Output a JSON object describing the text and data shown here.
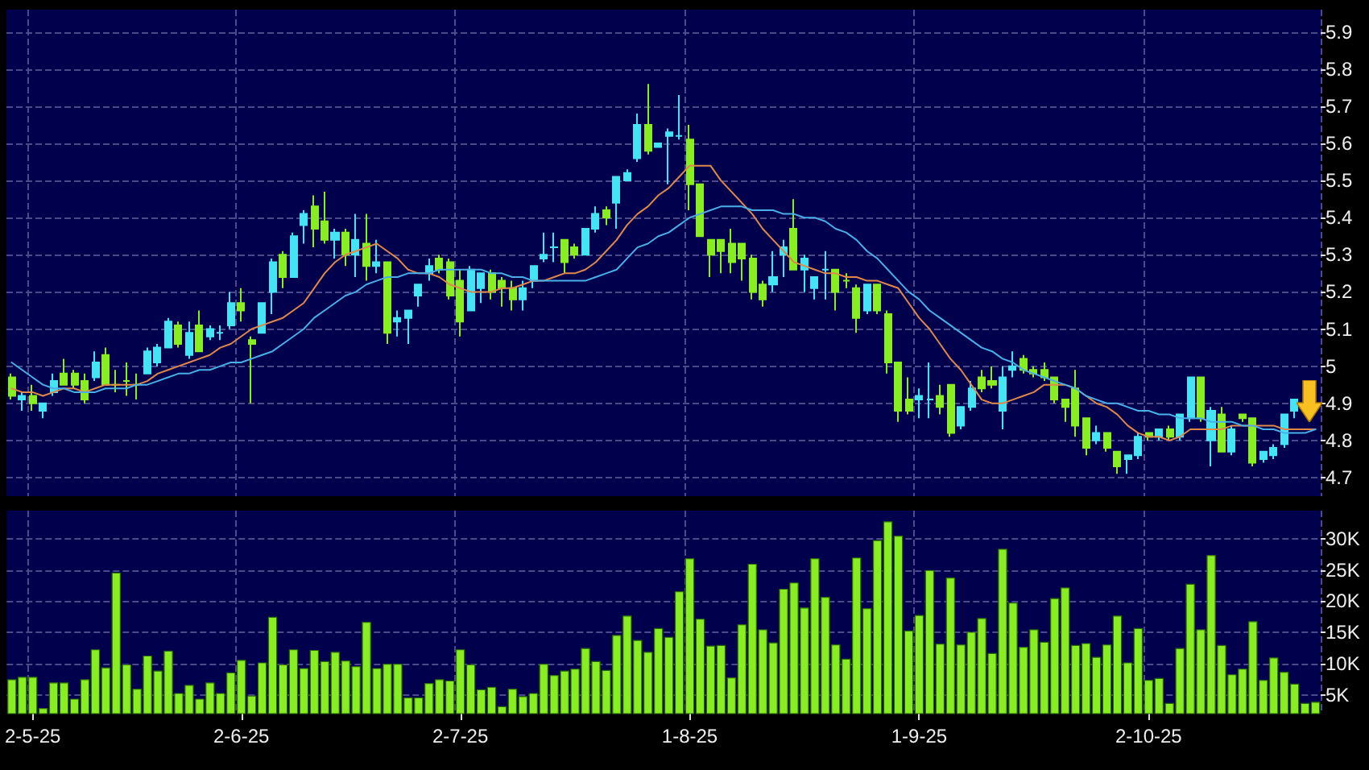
{
  "chart_data": [
    {
      "type": "candlestick",
      "tick_labels": "y",
      "grid": true,
      "marker": "none",
      "line_style": "solid",
      "categories": [
        null,
        null,
        null,
        null,
        null,
        null,
        null,
        null,
        null,
        null,
        null,
        null,
        null,
        null,
        null,
        null,
        null,
        null,
        null,
        null,
        null,
        null,
        null,
        null,
        null,
        null,
        null,
        null,
        null,
        null,
        null,
        null,
        null,
        null,
        null,
        null,
        null,
        null,
        null,
        null,
        null,
        null,
        null,
        null,
        null,
        null,
        null,
        null,
        null,
        null,
        null,
        null,
        null,
        null,
        null,
        null,
        null,
        null,
        null,
        null,
        null,
        null,
        null,
        null,
        null,
        null,
        null,
        null,
        null,
        null,
        null,
        null,
        null,
        null,
        null,
        null,
        null,
        null,
        null,
        null,
        null,
        null,
        null,
        null,
        null,
        null,
        null,
        null,
        null,
        null,
        null,
        null,
        null,
        null,
        null,
        null,
        null,
        null,
        null,
        null,
        null,
        null,
        null,
        null,
        null,
        null,
        null,
        null,
        null,
        null,
        null,
        null,
        null,
        null,
        null,
        null,
        null,
        null,
        null,
        null,
        null,
        null,
        null,
        null,
        null,
        null
      ],
      "ylim": [
        4.65,
        5.96
      ],
      "yticks": [
        4.7,
        4.8,
        4.9,
        5,
        5.1,
        5.2,
        5.3,
        5.4,
        5.5,
        5.6,
        5.7,
        5.8,
        5.9
      ],
      "series": [
        {
          "type": "candlestick",
          "ohlc": [
            [
              4.97,
              4.98,
              4.91,
              4.92
            ],
            [
              4.91,
              4.93,
              4.88,
              4.92
            ],
            [
              4.92,
              4.95,
              4.88,
              4.9
            ],
            [
              4.88,
              4.9,
              4.86,
              4.9
            ],
            [
              4.93,
              4.98,
              4.92,
              4.96
            ],
            [
              4.98,
              5.02,
              4.95,
              4.95
            ],
            [
              4.98,
              4.99,
              4.94,
              4.95
            ],
            [
              4.96,
              4.98,
              4.9,
              4.91
            ],
            [
              4.97,
              5.04,
              4.96,
              5.01
            ],
            [
              5.03,
              5.05,
              4.95,
              4.95
            ],
            [
              4.95,
              4.99,
              4.93,
              4.95
            ],
            [
              4.96,
              5.01,
              4.92,
              4.96
            ],
            [
              4.95,
              4.98,
              4.91,
              4.95
            ],
            [
              4.98,
              5.05,
              4.98,
              5.04
            ],
            [
              5.01,
              5.06,
              5.0,
              5.05
            ],
            [
              5.05,
              5.13,
              5.05,
              5.12
            ],
            [
              5.11,
              5.12,
              5.05,
              5.06
            ],
            [
              5.03,
              5.12,
              5.02,
              5.09
            ],
            [
              5.11,
              5.15,
              5.04,
              5.04
            ],
            [
              5.08,
              5.11,
              5.07,
              5.1
            ],
            [
              5.09,
              5.11,
              5.07,
              5.09
            ],
            [
              5.11,
              5.2,
              5.1,
              5.17
            ],
            [
              5.17,
              5.21,
              5.12,
              5.15
            ],
            [
              5.07,
              5.08,
              4.9,
              5.06
            ],
            [
              5.09,
              5.17,
              5.09,
              5.17
            ],
            [
              5.2,
              5.29,
              5.14,
              5.28
            ],
            [
              5.3,
              5.31,
              5.21,
              5.24
            ],
            [
              5.24,
              5.36,
              5.24,
              5.35
            ],
            [
              5.38,
              5.42,
              5.33,
              5.41
            ],
            [
              5.43,
              5.46,
              5.32,
              5.37
            ],
            [
              5.39,
              5.47,
              5.33,
              5.34
            ],
            [
              5.34,
              5.37,
              5.29,
              5.36
            ],
            [
              5.36,
              5.37,
              5.27,
              5.3
            ],
            [
              5.3,
              5.41,
              5.24,
              5.34
            ],
            [
              5.33,
              5.41,
              5.23,
              5.27
            ],
            [
              5.27,
              5.34,
              5.25,
              5.28
            ],
            [
              5.28,
              5.28,
              5.06,
              5.09
            ],
            [
              5.12,
              5.15,
              5.08,
              5.13
            ],
            [
              5.13,
              5.15,
              5.06,
              5.15
            ],
            [
              5.19,
              5.22,
              5.16,
              5.22
            ],
            [
              5.25,
              5.29,
              5.23,
              5.27
            ],
            [
              5.29,
              5.3,
              5.25,
              5.26
            ],
            [
              5.28,
              5.29,
              5.18,
              5.19
            ],
            [
              5.23,
              5.26,
              5.08,
              5.12
            ],
            [
              5.15,
              5.27,
              5.15,
              5.26
            ],
            [
              5.21,
              5.25,
              5.17,
              5.25
            ],
            [
              5.25,
              5.26,
              5.18,
              5.2
            ],
            [
              5.23,
              5.24,
              5.16,
              5.21
            ],
            [
              5.21,
              5.23,
              5.15,
              5.18
            ],
            [
              5.18,
              5.23,
              5.15,
              5.21
            ],
            [
              5.23,
              5.27,
              5.21,
              5.27
            ],
            [
              5.29,
              5.36,
              5.28,
              5.3
            ],
            [
              5.32,
              5.36,
              5.28,
              5.32
            ],
            [
              5.34,
              5.34,
              5.25,
              5.28
            ],
            [
              5.32,
              5.33,
              5.29,
              5.3
            ],
            [
              5.3,
              5.37,
              5.3,
              5.37
            ],
            [
              5.37,
              5.43,
              5.36,
              5.41
            ],
            [
              5.42,
              5.43,
              5.38,
              5.4
            ],
            [
              5.44,
              5.51,
              5.37,
              5.51
            ],
            [
              5.5,
              5.53,
              5.5,
              5.52
            ],
            [
              5.56,
              5.68,
              5.55,
              5.65
            ],
            [
              5.65,
              5.76,
              5.57,
              5.58
            ],
            [
              5.59,
              5.6,
              5.59,
              5.6
            ],
            [
              5.62,
              5.64,
              5.49,
              5.63
            ],
            [
              5.62,
              5.73,
              5.61,
              5.62
            ],
            [
              5.61,
              5.65,
              5.42,
              5.49
            ],
            [
              5.49,
              5.49,
              5.35,
              5.35
            ],
            [
              5.34,
              5.34,
              5.24,
              5.3
            ],
            [
              5.34,
              5.34,
              5.25,
              5.31
            ],
            [
              5.33,
              5.37,
              5.25,
              5.28
            ],
            [
              5.33,
              5.33,
              5.23,
              5.29
            ],
            [
              5.29,
              5.3,
              5.18,
              5.2
            ],
            [
              5.22,
              5.23,
              5.16,
              5.18
            ],
            [
              5.22,
              5.31,
              5.2,
              5.24
            ],
            [
              5.3,
              5.34,
              5.24,
              5.32
            ],
            [
              5.37,
              5.45,
              5.26,
              5.26
            ],
            [
              5.26,
              5.3,
              5.2,
              5.29
            ],
            [
              5.21,
              5.24,
              5.18,
              5.24
            ],
            [
              5.26,
              5.31,
              5.18,
              5.26
            ],
            [
              5.26,
              5.26,
              5.15,
              5.2
            ],
            [
              5.23,
              5.25,
              5.21,
              5.23
            ],
            [
              5.21,
              5.22,
              5.09,
              5.13
            ],
            [
              5.15,
              5.22,
              5.14,
              5.22
            ],
            [
              5.22,
              5.22,
              5.14,
              5.15
            ],
            [
              5.14,
              5.15,
              4.98,
              5.01
            ],
            [
              5.01,
              5.01,
              4.85,
              4.88
            ],
            [
              4.91,
              4.97,
              4.87,
              4.88
            ],
            [
              4.91,
              4.94,
              4.86,
              4.92
            ],
            [
              4.91,
              5.01,
              4.86,
              4.91
            ],
            [
              4.92,
              4.95,
              4.87,
              4.89
            ],
            [
              4.95,
              4.95,
              4.81,
              4.82
            ],
            [
              4.84,
              4.89,
              4.83,
              4.89
            ],
            [
              4.89,
              4.96,
              4.88,
              4.94
            ],
            [
              4.97,
              4.99,
              4.93,
              4.94
            ],
            [
              4.96,
              5.0,
              4.94,
              4.95
            ],
            [
              4.88,
              5.0,
              4.83,
              4.97
            ],
            [
              4.99,
              5.04,
              4.97,
              5.0
            ],
            [
              5.02,
              5.03,
              4.98,
              4.99
            ],
            [
              4.99,
              5.0,
              4.97,
              4.98
            ],
            [
              4.99,
              5.01,
              4.96,
              4.97
            ],
            [
              4.97,
              4.97,
              4.9,
              4.91
            ],
            [
              4.91,
              4.91,
              4.85,
              4.89
            ],
            [
              4.94,
              4.99,
              4.81,
              4.84
            ],
            [
              4.86,
              4.86,
              4.76,
              4.78
            ],
            [
              4.8,
              4.84,
              4.79,
              4.82
            ],
            [
              4.82,
              4.82,
              4.77,
              4.78
            ],
            [
              4.77,
              4.77,
              4.71,
              4.73
            ],
            [
              4.75,
              4.76,
              4.71,
              4.76
            ],
            [
              4.76,
              4.82,
              4.75,
              4.81
            ],
            [
              4.82,
              4.82,
              4.8,
              4.81
            ],
            [
              4.81,
              4.83,
              4.8,
              4.83
            ],
            [
              4.83,
              4.84,
              4.8,
              4.81
            ],
            [
              4.81,
              4.87,
              4.8,
              4.87
            ],
            [
              4.86,
              4.97,
              4.85,
              4.97
            ],
            [
              4.97,
              4.97,
              4.85,
              4.86
            ],
            [
              4.8,
              4.89,
              4.73,
              4.88
            ],
            [
              4.87,
              4.89,
              4.77,
              4.77
            ],
            [
              4.77,
              4.84,
              4.76,
              4.83
            ],
            [
              4.87,
              4.87,
              4.85,
              4.86
            ],
            [
              4.86,
              4.86,
              4.73,
              4.74
            ],
            [
              4.75,
              4.77,
              4.74,
              4.77
            ],
            [
              4.76,
              4.79,
              4.75,
              4.78
            ],
            [
              4.79,
              4.87,
              4.78,
              4.87
            ],
            [
              4.88,
              4.91,
              4.86,
              4.91
            ],
            null,
            null
          ],
          "colors": [
            "#88ee22",
            "#44e4f4",
            "#88ee22",
            "#44e4f4",
            "#44e4f4",
            "#88ee22",
            "#88ee22",
            "#88ee22",
            "#44e4f4",
            "#88ee22",
            "#88ee22",
            "#88ee22",
            "#88ee22",
            "#44e4f4",
            "#44e4f4",
            "#44e4f4",
            "#88ee22",
            "#44e4f4",
            "#88ee22",
            "#44e4f4",
            "#44e4f4",
            "#44e4f4",
            "#88ee22",
            "#88ee22",
            "#44e4f4",
            "#44e4f4",
            "#88ee22",
            "#44e4f4",
            "#44e4f4",
            "#88ee22",
            "#88ee22",
            "#44e4f4",
            "#88ee22",
            "#44e4f4",
            "#88ee22",
            "#44e4f4",
            "#88ee22",
            "#44e4f4",
            "#44e4f4",
            "#44e4f4",
            "#44e4f4",
            "#88ee22",
            "#88ee22",
            "#88ee22",
            "#44e4f4",
            "#44e4f4",
            "#88ee22",
            "#88ee22",
            "#88ee22",
            "#44e4f4",
            "#44e4f4",
            "#44e4f4",
            "#44e4f4",
            "#88ee22",
            "#88ee22",
            "#44e4f4",
            "#44e4f4",
            "#88ee22",
            "#44e4f4",
            "#44e4f4",
            "#44e4f4",
            "#88ee22",
            "#44e4f4",
            "#44e4f4",
            "#44e4f4",
            "#88ee22",
            "#88ee22",
            "#88ee22",
            "#88ee22",
            "#88ee22",
            "#88ee22",
            "#88ee22",
            "#88ee22",
            "#44e4f4",
            "#44e4f4",
            "#88ee22",
            "#44e4f4",
            "#44e4f4",
            "#44e4f4",
            "#88ee22",
            "#88ee22",
            "#88ee22",
            "#44e4f4",
            "#88ee22",
            "#88ee22",
            "#88ee22",
            "#88ee22",
            "#44e4f4",
            "#44e4f4",
            "#88ee22",
            "#88ee22",
            "#44e4f4",
            "#44e4f4",
            "#88ee22",
            "#88ee22",
            "#44e4f4",
            "#44e4f4",
            "#88ee22",
            "#88ee22",
            "#88ee22",
            "#88ee22",
            "#88ee22",
            "#88ee22",
            "#88ee22",
            "#44e4f4",
            "#88ee22",
            "#88ee22",
            "#44e4f4",
            "#44e4f4",
            "#88ee22",
            "#44e4f4",
            "#88ee22",
            "#44e4f4",
            "#44e4f4",
            "#88ee22",
            "#44e4f4",
            "#88ee22",
            "#44e4f4",
            "#88ee22",
            "#88ee22",
            "#44e4f4",
            "#44e4f4",
            "#44e4f4",
            "#44e4f4",
            null,
            null
          ]
        },
        {
          "type": "line",
          "color": "#e0884a",
          "values": [
            4.94,
            4.93,
            4.93,
            4.92,
            4.93,
            4.94,
            4.94,
            4.93,
            4.94,
            4.95,
            4.95,
            4.95,
            4.95,
            4.96,
            4.98,
            4.99,
            5.0,
            5.01,
            5.02,
            5.03,
            5.05,
            5.06,
            5.08,
            5.1,
            5.11,
            5.12,
            5.13,
            5.15,
            5.17,
            5.21,
            5.25,
            5.28,
            5.3,
            5.31,
            5.32,
            5.33,
            5.31,
            5.29,
            5.26,
            5.25,
            5.25,
            5.24,
            5.22,
            5.21,
            5.2,
            5.2,
            5.2,
            5.21,
            5.21,
            5.22,
            5.23,
            5.23,
            5.24,
            5.25,
            5.25,
            5.26,
            5.28,
            5.31,
            5.34,
            5.38,
            5.41,
            5.43,
            5.46,
            5.48,
            5.51,
            5.54,
            5.54,
            5.54,
            5.5,
            5.47,
            5.44,
            5.41,
            5.37,
            5.34,
            5.31,
            5.28,
            5.27,
            5.26,
            5.25,
            5.25,
            5.24,
            5.24,
            5.23,
            5.23,
            5.22,
            5.21,
            5.17,
            5.13,
            5.1,
            5.06,
            5.02,
            4.99,
            4.95,
            4.91,
            4.9,
            4.9,
            4.91,
            4.92,
            4.93,
            4.95,
            4.95,
            4.95,
            4.94,
            4.92,
            4.9,
            4.89,
            4.87,
            4.84,
            4.82,
            4.81,
            4.81,
            4.8,
            4.81,
            4.83,
            4.83,
            4.83,
            4.83,
            4.84,
            4.84,
            4.84,
            4.84,
            4.84,
            4.83,
            4.83,
            4.83,
            4.83
          ]
        },
        {
          "type": "line",
          "color": "#4aaee8",
          "values": [
            5.01,
            4.99,
            4.97,
            4.95,
            4.94,
            4.94,
            4.93,
            4.93,
            4.93,
            4.94,
            4.94,
            4.94,
            4.95,
            4.95,
            4.96,
            4.97,
            4.98,
            4.98,
            4.99,
            4.99,
            5.0,
            5.01,
            5.01,
            5.02,
            5.03,
            5.04,
            5.06,
            5.08,
            5.1,
            5.13,
            5.15,
            5.17,
            5.19,
            5.2,
            5.22,
            5.23,
            5.24,
            5.24,
            5.25,
            5.25,
            5.25,
            5.26,
            5.26,
            5.26,
            5.26,
            5.26,
            5.25,
            5.25,
            5.24,
            5.24,
            5.23,
            5.23,
            5.23,
            5.23,
            5.23,
            5.23,
            5.24,
            5.25,
            5.26,
            5.29,
            5.32,
            5.33,
            5.35,
            5.36,
            5.38,
            5.4,
            5.41,
            5.42,
            5.43,
            5.43,
            5.43,
            5.42,
            5.42,
            5.42,
            5.41,
            5.41,
            5.4,
            5.4,
            5.39,
            5.37,
            5.36,
            5.34,
            5.31,
            5.29,
            5.26,
            5.23,
            5.2,
            5.18,
            5.15,
            5.13,
            5.11,
            5.09,
            5.07,
            5.05,
            5.04,
            5.02,
            5.01,
            4.99,
            4.98,
            4.97,
            4.96,
            4.95,
            4.94,
            4.92,
            4.91,
            4.9,
            4.9,
            4.89,
            4.88,
            4.88,
            4.87,
            4.87,
            4.86,
            4.86,
            4.86,
            4.85,
            4.85,
            4.85,
            4.84,
            4.84,
            4.83,
            4.83,
            4.82,
            4.82,
            4.82,
            4.83
          ]
        }
      ]
    },
    {
      "type": "bar",
      "grid": true,
      "color": "#88ee22",
      "categories": [
        null,
        null,
        "2-5-25",
        null,
        null,
        null,
        null,
        null,
        null,
        null,
        null,
        null,
        null,
        null,
        null,
        null,
        null,
        null,
        null,
        null,
        null,
        null,
        "2-6-25",
        null,
        null,
        null,
        null,
        null,
        null,
        null,
        null,
        null,
        null,
        null,
        null,
        null,
        null,
        null,
        null,
        null,
        null,
        null,
        null,
        "2-7-25",
        null,
        null,
        null,
        null,
        null,
        null,
        null,
        null,
        null,
        null,
        null,
        null,
        null,
        null,
        null,
        null,
        null,
        null,
        null,
        null,
        null,
        "1-8-25",
        null,
        null,
        null,
        null,
        null,
        null,
        null,
        null,
        null,
        null,
        null,
        null,
        null,
        null,
        null,
        null,
        null,
        null,
        null,
        null,
        null,
        "1-9-25",
        null,
        null,
        null,
        null,
        null,
        null,
        null,
        null,
        null,
        null,
        null,
        null,
        null,
        null,
        null,
        null,
        null,
        null,
        null,
        null,
        null,
        "2-10-25",
        null,
        null,
        null,
        null,
        null,
        null,
        null,
        null,
        null,
        null,
        null,
        null,
        null,
        null,
        null,
        null
      ],
      "ylim": [
        2000,
        34500
      ],
      "yticks": [
        {
          "value": 5000,
          "label": "5K"
        },
        {
          "value": 10000,
          "label": "10K"
        },
        {
          "value": 15000,
          "label": "15K"
        },
        {
          "value": 20000,
          "label": "20K"
        },
        {
          "value": 25000,
          "label": "25K"
        },
        {
          "value": 30000,
          "label": "30K"
        }
      ],
      "values": [
        7500,
        7900,
        7900,
        2900,
        7000,
        7000,
        4400,
        7500,
        12300,
        9400,
        24600,
        9900,
        6000,
        11300,
        8900,
        12100,
        5300,
        6600,
        4400,
        7000,
        5300,
        8600,
        10600,
        4900,
        10200,
        17500,
        9900,
        12300,
        9300,
        12200,
        10400,
        11900,
        10500,
        9600,
        16700,
        9300,
        10000,
        10000,
        4600,
        4600,
        6900,
        7500,
        7300,
        12300,
        9900,
        5900,
        6300,
        3200,
        6000,
        4800,
        5300,
        10000,
        8200,
        8900,
        9200,
        12500,
        10400,
        9000,
        14600,
        17700,
        13800,
        11900,
        15700,
        14300,
        21600,
        26900,
        17200,
        12900,
        13000,
        7800,
        16300,
        26000,
        15500,
        13400,
        22000,
        23000,
        19000,
        26900,
        20700,
        13100,
        10800,
        27000,
        18900,
        29800,
        32800,
        30500,
        15300,
        17800,
        25000,
        13200,
        23800,
        13100,
        15100,
        17300,
        11700,
        28400,
        19800,
        12700,
        15500,
        13500,
        20500,
        22200,
        13000,
        13300,
        11100,
        13100,
        17700,
        10200,
        15700,
        7400,
        7700,
        3700,
        12500,
        22800,
        15500,
        27400,
        13000,
        8300,
        9200,
        16800,
        7400,
        11000,
        8700,
        6800,
        3700,
        3900
      ]
    }
  ]
}
